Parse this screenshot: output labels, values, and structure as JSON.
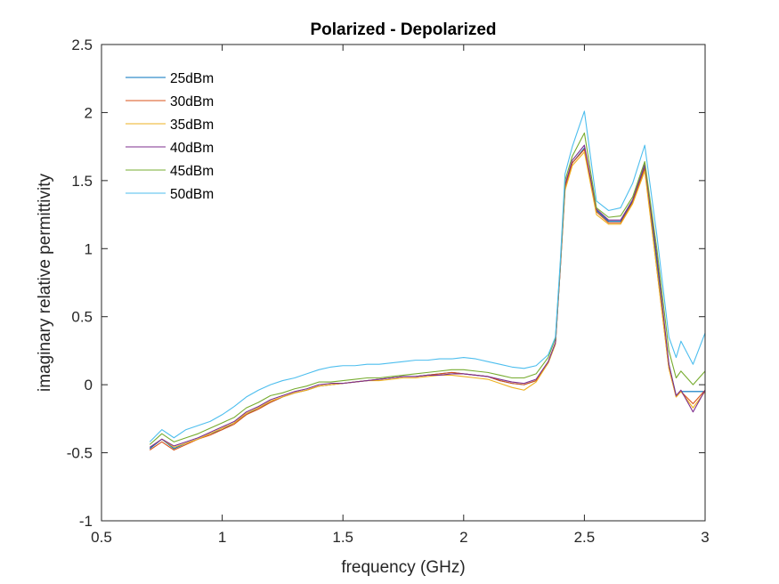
{
  "chart_data": {
    "type": "line",
    "title": "Polarized - Depolarized",
    "xlabel": "frequency (GHz)",
    "ylabel": "imaginary relative permittivity",
    "xlim": [
      0.5,
      3
    ],
    "ylim": [
      -1,
      2.5
    ],
    "xticks": [
      0.5,
      1,
      1.5,
      2,
      2.5,
      3
    ],
    "xtick_labels": [
      "0.5",
      "1",
      "1.5",
      "2",
      "2.5",
      "3"
    ],
    "yticks": [
      -1,
      -0.5,
      0,
      0.5,
      1,
      1.5,
      2,
      2.5
    ],
    "ytick_labels": [
      "-1",
      "-0.5",
      "0",
      "0.5",
      "1",
      "1.5",
      "2",
      "2.5"
    ],
    "grid": false,
    "box": true,
    "legend_position": "top-left",
    "x": [
      0.7,
      0.75,
      0.8,
      0.85,
      0.9,
      0.95,
      1.0,
      1.05,
      1.1,
      1.15,
      1.2,
      1.25,
      1.3,
      1.35,
      1.4,
      1.45,
      1.5,
      1.55,
      1.6,
      1.65,
      1.7,
      1.75,
      1.8,
      1.85,
      1.9,
      1.95,
      2.0,
      2.05,
      2.1,
      2.15,
      2.2,
      2.25,
      2.3,
      2.35,
      2.38,
      2.4,
      2.42,
      2.45,
      2.5,
      2.55,
      2.6,
      2.65,
      2.7,
      2.75,
      2.8,
      2.85,
      2.88,
      2.9,
      2.95,
      3.0
    ],
    "series": [
      {
        "name": "25dBm",
        "color": "#0072BD",
        "values": [
          -0.47,
          -0.4,
          -0.47,
          -0.43,
          -0.4,
          -0.36,
          -0.33,
          -0.28,
          -0.22,
          -0.17,
          -0.13,
          -0.09,
          -0.06,
          -0.04,
          -0.01,
          0.0,
          0.01,
          0.02,
          0.03,
          0.04,
          0.05,
          0.06,
          0.06,
          0.07,
          0.08,
          0.09,
          0.08,
          0.07,
          0.06,
          0.03,
          0.01,
          0.0,
          0.03,
          0.16,
          0.3,
          0.85,
          1.45,
          1.63,
          1.74,
          1.28,
          1.2,
          1.2,
          1.35,
          1.6,
          0.9,
          0.15,
          -0.08,
          -0.05,
          -0.05,
          -0.05
        ]
      },
      {
        "name": "30dBm",
        "color": "#D95319",
        "values": [
          -0.48,
          -0.42,
          -0.48,
          -0.44,
          -0.4,
          -0.37,
          -0.33,
          -0.29,
          -0.22,
          -0.18,
          -0.13,
          -0.09,
          -0.06,
          -0.04,
          -0.01,
          0.0,
          0.01,
          0.02,
          0.03,
          0.04,
          0.05,
          0.06,
          0.06,
          0.07,
          0.08,
          0.09,
          0.08,
          0.07,
          0.06,
          0.03,
          0.01,
          0.0,
          0.03,
          0.16,
          0.3,
          0.85,
          1.45,
          1.63,
          1.73,
          1.27,
          1.19,
          1.19,
          1.34,
          1.59,
          0.85,
          0.12,
          -0.09,
          -0.05,
          -0.14,
          -0.04
        ]
      },
      {
        "name": "35dBm",
        "color": "#EDB120",
        "values": [
          -0.46,
          -0.4,
          -0.46,
          -0.43,
          -0.4,
          -0.36,
          -0.32,
          -0.28,
          -0.21,
          -0.17,
          -0.12,
          -0.09,
          -0.06,
          -0.04,
          -0.01,
          0.0,
          0.01,
          0.02,
          0.03,
          0.03,
          0.04,
          0.05,
          0.05,
          0.06,
          0.07,
          0.07,
          0.06,
          0.05,
          0.04,
          0.01,
          -0.02,
          -0.04,
          0.02,
          0.16,
          0.3,
          0.85,
          1.43,
          1.61,
          1.71,
          1.25,
          1.18,
          1.18,
          1.33,
          1.57,
          0.85,
          0.12,
          -0.09,
          -0.05,
          -0.17,
          -0.05
        ]
      },
      {
        "name": "40dBm",
        "color": "#7E2F8E",
        "values": [
          -0.46,
          -0.4,
          -0.45,
          -0.42,
          -0.39,
          -0.35,
          -0.31,
          -0.27,
          -0.2,
          -0.16,
          -0.11,
          -0.08,
          -0.05,
          -0.03,
          0.0,
          0.01,
          0.01,
          0.02,
          0.03,
          0.04,
          0.05,
          0.06,
          0.06,
          0.07,
          0.07,
          0.08,
          0.08,
          0.07,
          0.06,
          0.04,
          0.02,
          0.01,
          0.04,
          0.17,
          0.31,
          0.86,
          1.47,
          1.65,
          1.76,
          1.29,
          1.21,
          1.21,
          1.36,
          1.62,
          0.95,
          0.15,
          -0.08,
          -0.04,
          -0.2,
          -0.04
        ]
      },
      {
        "name": "45dBm",
        "color": "#77AC30",
        "values": [
          -0.44,
          -0.36,
          -0.42,
          -0.39,
          -0.36,
          -0.32,
          -0.28,
          -0.24,
          -0.17,
          -0.13,
          -0.08,
          -0.06,
          -0.03,
          -0.01,
          0.02,
          0.02,
          0.03,
          0.04,
          0.05,
          0.05,
          0.06,
          0.07,
          0.08,
          0.09,
          0.1,
          0.11,
          0.11,
          0.1,
          0.09,
          0.07,
          0.05,
          0.05,
          0.08,
          0.2,
          0.34,
          0.88,
          1.5,
          1.68,
          1.85,
          1.3,
          1.23,
          1.24,
          1.38,
          1.64,
          1.0,
          0.25,
          0.05,
          0.1,
          0.0,
          0.1
        ]
      },
      {
        "name": "50dBm",
        "color": "#4DBEEE",
        "values": [
          -0.42,
          -0.33,
          -0.39,
          -0.33,
          -0.3,
          -0.27,
          -0.22,
          -0.16,
          -0.09,
          -0.04,
          0.0,
          0.03,
          0.05,
          0.08,
          0.11,
          0.13,
          0.14,
          0.14,
          0.15,
          0.15,
          0.16,
          0.17,
          0.18,
          0.18,
          0.19,
          0.19,
          0.2,
          0.19,
          0.17,
          0.15,
          0.13,
          0.12,
          0.14,
          0.22,
          0.35,
          0.9,
          1.55,
          1.75,
          2.01,
          1.35,
          1.28,
          1.3,
          1.48,
          1.76,
          1.1,
          0.35,
          0.2,
          0.32,
          0.15,
          0.38
        ]
      }
    ]
  }
}
